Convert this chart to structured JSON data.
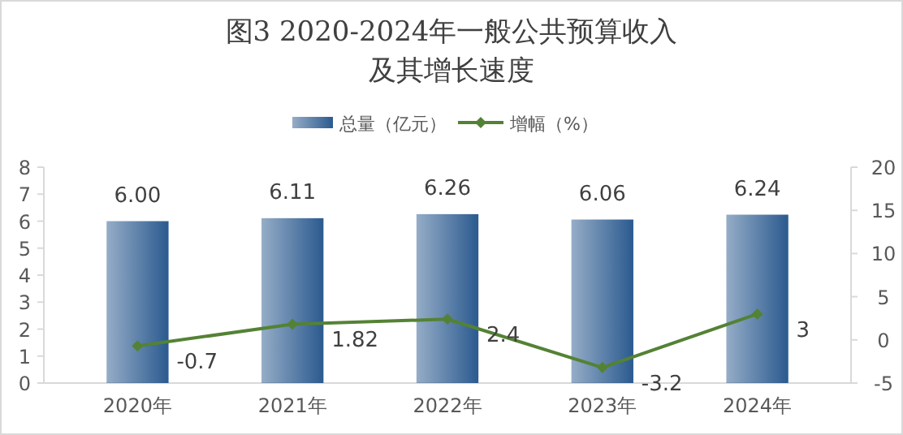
{
  "chart_data": {
    "type": "bar",
    "title": "图3 2020-2024年一般公共预算收入及其增长速度",
    "categories": [
      "2020年",
      "2021年",
      "2022年",
      "2023年",
      "2024年"
    ],
    "series": [
      {
        "name": "总量（亿元）",
        "color": "#2b5a8f",
        "values": [
          6.0,
          6.11,
          6.26,
          6.06,
          6.24
        ],
        "value_labels": [
          "6.00",
          "6.11",
          "6.26",
          "6.06",
          "6.24"
        ]
      },
      {
        "name": "增幅（%）",
        "type": "line",
        "axis": "y2",
        "color": "#548235",
        "values": [
          -0.7,
          1.82,
          2.4,
          -3.2,
          3
        ],
        "value_labels": [
          "-0.7",
          "1.82",
          "2.4",
          "-3.2",
          "3"
        ]
      }
    ],
    "ylim": [
      0,
      8
    ],
    "yticks": [
      0,
      1,
      2,
      3,
      4,
      5,
      6,
      7,
      8
    ],
    "y2lim": [
      -5,
      20
    ],
    "y2ticks": [
      -5,
      0,
      5,
      10,
      15,
      20
    ],
    "legend": "top",
    "marker": "diamond",
    "grid": false
  }
}
